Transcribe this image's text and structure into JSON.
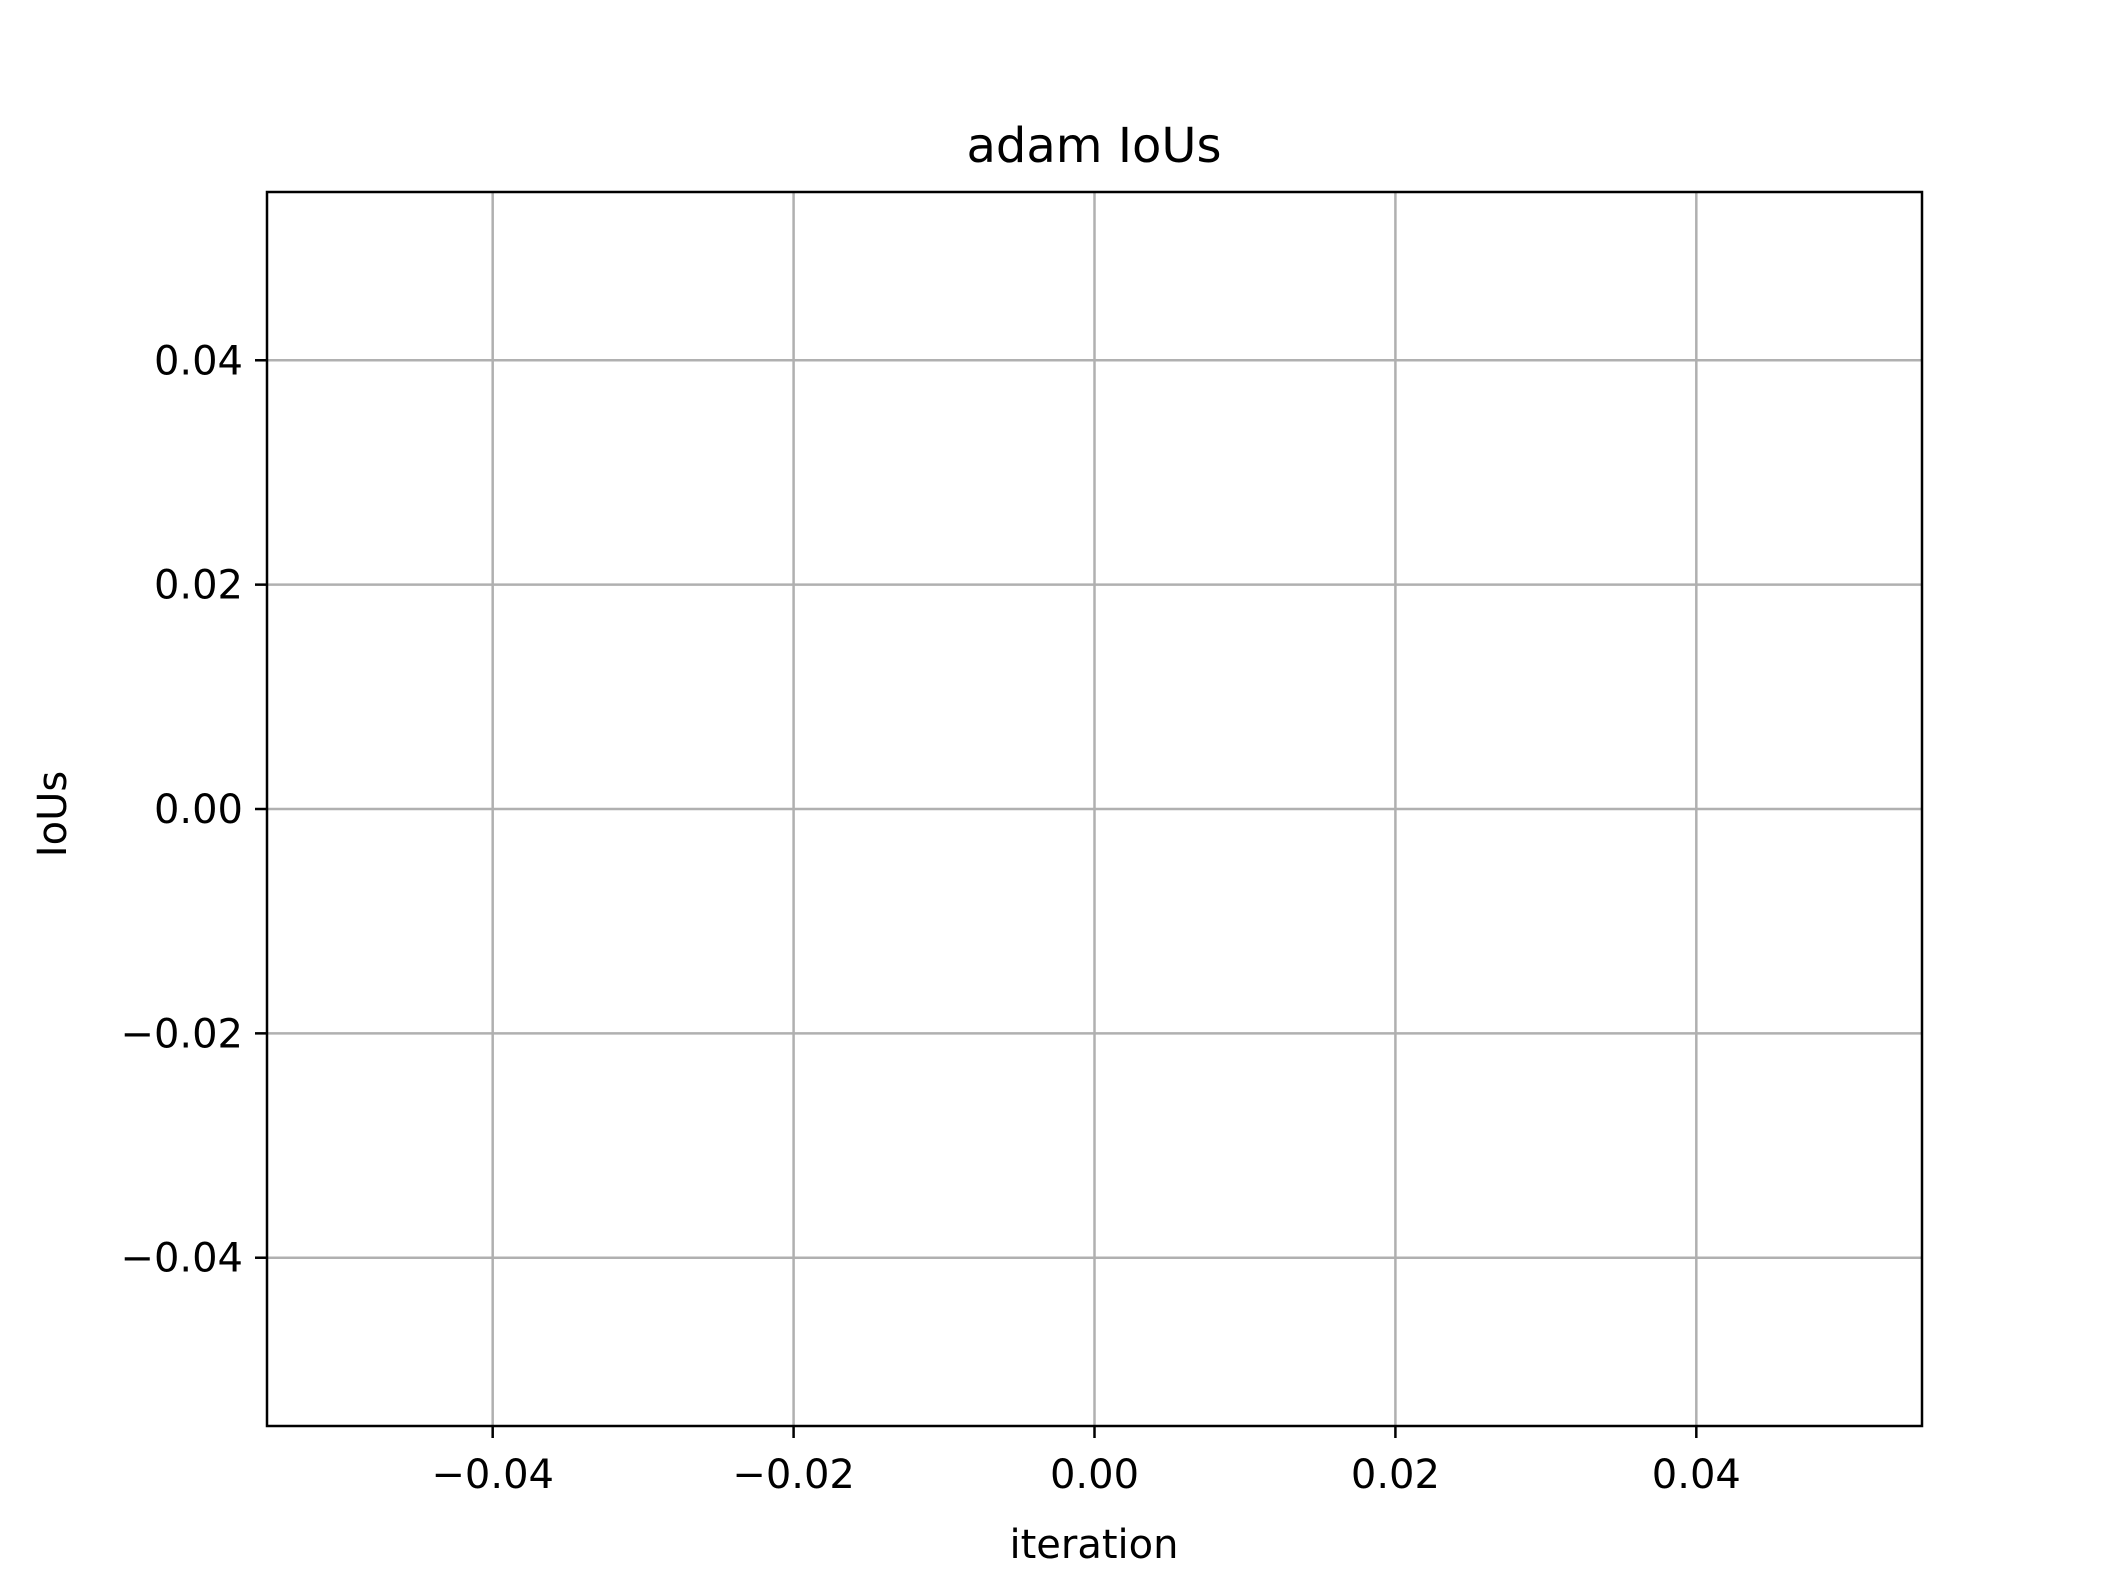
{
  "chart_data": {
    "type": "line",
    "title": "adam IoUs",
    "xlabel": "iteration",
    "ylabel": "IoUs",
    "xlim": [
      -0.055,
      0.055
    ],
    "ylim": [
      -0.055,
      0.055
    ],
    "xticks": [
      -0.04,
      -0.02,
      0.0,
      0.02,
      0.04
    ],
    "yticks": [
      -0.04,
      -0.02,
      0.0,
      0.02,
      0.04
    ],
    "xtick_labels": [
      "−0.04",
      "−0.02",
      "0.00",
      "0.02",
      "0.04"
    ],
    "ytick_labels": [
      "−0.04",
      "−0.02",
      "0.00",
      "0.02",
      "0.04"
    ],
    "grid": true,
    "series": [],
    "colors": {
      "grid": "#b0b0b0",
      "axes": "#000000",
      "background": "#ffffff"
    }
  }
}
